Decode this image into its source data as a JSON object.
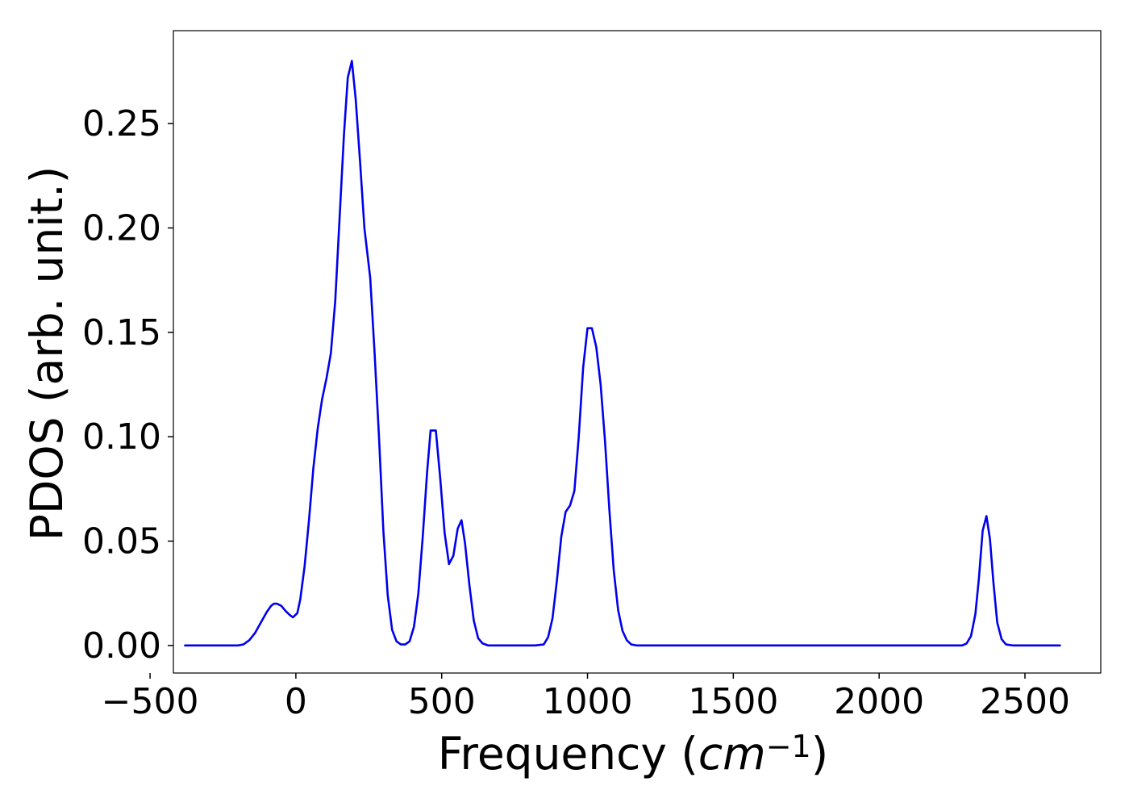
{
  "chart_data": {
    "type": "line",
    "xlabel": "Frequency",
    "xlabel_unit_base": "cm",
    "xlabel_unit_exp": "−1",
    "ylabel": "PDOS (arb. unit.)",
    "xlim": [
      -420,
      2760
    ],
    "ylim": [
      -0.0132,
      0.2945
    ],
    "xticks": [
      -500,
      0,
      500,
      1000,
      1500,
      2000,
      2500
    ],
    "xtick_labels": [
      "−500",
      "0",
      "500",
      "1000",
      "1500",
      "2000",
      "2500"
    ],
    "yticks": [
      0.0,
      0.05,
      0.1,
      0.15,
      0.2,
      0.25
    ],
    "ytick_labels": [
      "0.00",
      "0.05",
      "0.10",
      "0.15",
      "0.20",
      "0.25"
    ],
    "grid": false,
    "line_color": "#0000ee",
    "series": [
      {
        "values": [
          [
            -380,
            0.0
          ],
          [
            -300,
            0.0
          ],
          [
            -250,
            0.0
          ],
          [
            -200,
            0.0
          ],
          [
            -180,
            0.0005
          ],
          [
            -160,
            0.0025
          ],
          [
            -140,
            0.006
          ],
          [
            -120,
            0.011
          ],
          [
            -100,
            0.016
          ],
          [
            -85,
            0.019
          ],
          [
            -75,
            0.02
          ],
          [
            -65,
            0.02
          ],
          [
            -50,
            0.019
          ],
          [
            -35,
            0.0165
          ],
          [
            -20,
            0.0145
          ],
          [
            -10,
            0.0135
          ],
          [
            5,
            0.0155
          ],
          [
            15,
            0.022
          ],
          [
            30,
            0.038
          ],
          [
            45,
            0.06
          ],
          [
            60,
            0.085
          ],
          [
            75,
            0.104
          ],
          [
            90,
            0.118
          ],
          [
            105,
            0.128
          ],
          [
            120,
            0.14
          ],
          [
            135,
            0.165
          ],
          [
            150,
            0.205
          ],
          [
            165,
            0.245
          ],
          [
            178,
            0.272
          ],
          [
            192,
            0.28
          ],
          [
            205,
            0.262
          ],
          [
            220,
            0.232
          ],
          [
            235,
            0.2
          ],
          [
            255,
            0.176
          ],
          [
            270,
            0.14
          ],
          [
            285,
            0.1
          ],
          [
            300,
            0.055
          ],
          [
            315,
            0.024
          ],
          [
            330,
            0.0075
          ],
          [
            345,
            0.002
          ],
          [
            360,
            0.0005
          ],
          [
            375,
            0.0005
          ],
          [
            390,
            0.002
          ],
          [
            405,
            0.009
          ],
          [
            420,
            0.025
          ],
          [
            435,
            0.052
          ],
          [
            450,
            0.083
          ],
          [
            462,
            0.103
          ],
          [
            480,
            0.103
          ],
          [
            495,
            0.08
          ],
          [
            510,
            0.054
          ],
          [
            525,
            0.039
          ],
          [
            540,
            0.043
          ],
          [
            555,
            0.056
          ],
          [
            568,
            0.06
          ],
          [
            580,
            0.049
          ],
          [
            595,
            0.029
          ],
          [
            610,
            0.012
          ],
          [
            625,
            0.0035
          ],
          [
            640,
            0.001
          ],
          [
            660,
            0.0
          ],
          [
            700,
            0.0
          ],
          [
            760,
            0.0
          ],
          [
            820,
            0.0
          ],
          [
            850,
            0.0005
          ],
          [
            865,
            0.004
          ],
          [
            880,
            0.013
          ],
          [
            895,
            0.031
          ],
          [
            910,
            0.052
          ],
          [
            925,
            0.064
          ],
          [
            940,
            0.067
          ],
          [
            955,
            0.074
          ],
          [
            970,
            0.1
          ],
          [
            985,
            0.133
          ],
          [
            1000,
            0.152
          ],
          [
            1015,
            0.152
          ],
          [
            1030,
            0.143
          ],
          [
            1045,
            0.125
          ],
          [
            1060,
            0.098
          ],
          [
            1075,
            0.065
          ],
          [
            1090,
            0.036
          ],
          [
            1105,
            0.017
          ],
          [
            1120,
            0.007
          ],
          [
            1135,
            0.0025
          ],
          [
            1150,
            0.0005
          ],
          [
            1170,
            0.0
          ],
          [
            1300,
            0.0
          ],
          [
            1500,
            0.0
          ],
          [
            1800,
            0.0
          ],
          [
            2100,
            0.0
          ],
          [
            2250,
            0.0
          ],
          [
            2285,
            0.0
          ],
          [
            2300,
            0.001
          ],
          [
            2315,
            0.0045
          ],
          [
            2330,
            0.015
          ],
          [
            2342,
            0.032
          ],
          [
            2355,
            0.055
          ],
          [
            2368,
            0.062
          ],
          [
            2380,
            0.051
          ],
          [
            2392,
            0.03
          ],
          [
            2405,
            0.011
          ],
          [
            2420,
            0.003
          ],
          [
            2435,
            0.0005
          ],
          [
            2460,
            0.0
          ],
          [
            2600,
            0.0
          ],
          [
            2620,
            0.0
          ]
        ]
      }
    ]
  }
}
